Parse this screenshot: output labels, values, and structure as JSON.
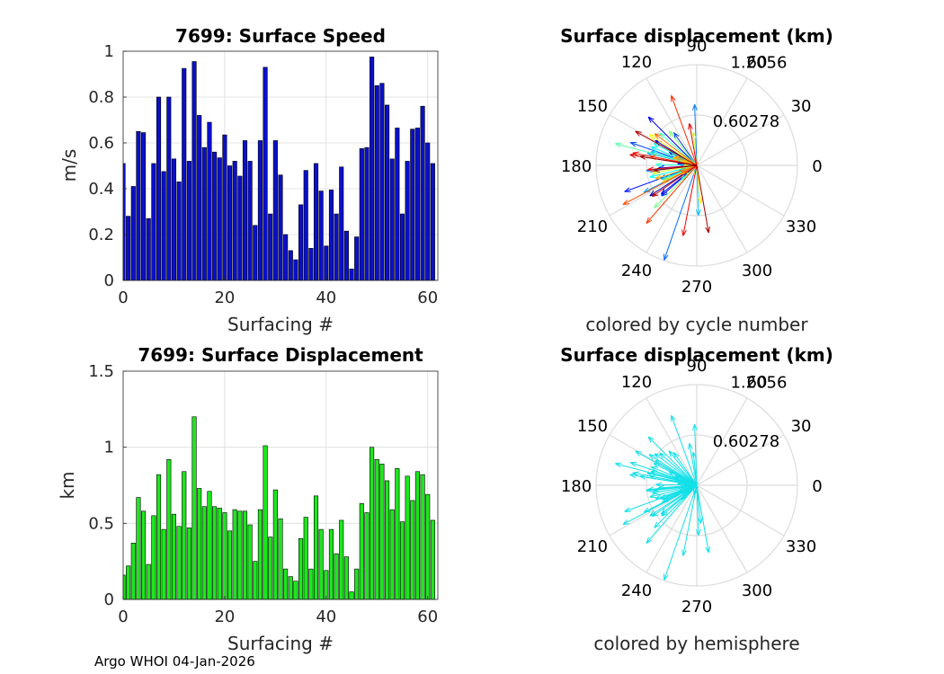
{
  "chart_data": [
    {
      "type": "bar",
      "title": "7699: Surface Speed",
      "xlabel": "Surfacing #",
      "ylabel": "m/s",
      "xlim": [
        0,
        62
      ],
      "ylim": [
        0,
        1
      ],
      "xticks": [
        "0",
        "20",
        "40",
        "60"
      ],
      "yticks": [
        "0",
        "0.2",
        "0.4",
        "0.6",
        "0.8",
        "1"
      ],
      "color": "#0a10c8",
      "values": [
        0.51,
        0.28,
        0.41,
        0.65,
        0.645,
        0.27,
        0.51,
        0.8,
        0.475,
        0.8,
        0.53,
        0.43,
        0.925,
        0.52,
        0.955,
        0.72,
        0.58,
        0.69,
        0.56,
        0.535,
        0.635,
        0.5,
        0.52,
        0.455,
        0.61,
        0.52,
        0.24,
        0.61,
        0.93,
        0.29,
        0.61,
        0.46,
        0.2,
        0.13,
        0.09,
        0.33,
        0.48,
        0.14,
        0.51,
        0.39,
        0.15,
        0.395,
        0.29,
        0.495,
        0.215,
        0.05,
        0.19,
        0.575,
        0.58,
        0.975,
        0.85,
        0.86,
        0.765,
        0.53,
        0.665,
        0.29,
        0.52,
        0.66,
        0.665,
        0.76,
        0.6,
        0.51
      ]
    },
    {
      "type": "polar",
      "title": "Surface displacement (km)",
      "caption": "colored by cycle number",
      "rlim": [
        0,
        1.2056
      ],
      "rticks": [
        "0.60278",
        "1.2056"
      ],
      "angle_labels": [
        "0",
        "30",
        "60",
        "90",
        "120",
        "150",
        "180",
        "210",
        "240",
        "270",
        "300",
        "330"
      ]
    },
    {
      "type": "bar",
      "title": "7699: Surface Displacement",
      "xlabel": "Surfacing #",
      "ylabel": "km",
      "xlim": [
        0,
        62
      ],
      "ylim": [
        0,
        1.5
      ],
      "xticks": [
        "0",
        "20",
        "40",
        "60"
      ],
      "yticks": [
        "0",
        "0.5",
        "1",
        "1.5"
      ],
      "color": "#1ee61e",
      "values": [
        0.16,
        0.22,
        0.37,
        0.67,
        0.58,
        0.23,
        0.55,
        0.82,
        0.46,
        0.92,
        0.56,
        0.48,
        0.84,
        0.47,
        1.2,
        0.73,
        0.61,
        0.71,
        0.61,
        0.6,
        0.57,
        0.45,
        0.59,
        0.58,
        0.58,
        0.49,
        0.25,
        0.59,
        1.01,
        0.41,
        0.72,
        0.53,
        0.2,
        0.15,
        0.12,
        0.4,
        0.54,
        0.2,
        0.68,
        0.46,
        0.19,
        0.46,
        0.3,
        0.52,
        0.28,
        0.05,
        0.2,
        0.63,
        0.57,
        1.0,
        0.92,
        0.89,
        0.78,
        0.59,
        0.86,
        0.51,
        0.81,
        0.65,
        0.84,
        0.82,
        0.69,
        0.52
      ]
    },
    {
      "type": "polar",
      "title": "Surface displacement (km)",
      "caption": "colored by hemisphere",
      "rlim": [
        0,
        1.2056
      ],
      "rticks": [
        "0.60278",
        "1.2056"
      ],
      "angle_labels": [
        "0",
        "30",
        "60",
        "90",
        "120",
        "150",
        "180",
        "210",
        "240",
        "270",
        "300",
        "330"
      ]
    }
  ],
  "footer": "Argo WHOI 04-Jan-2026",
  "colors": {
    "speed_bar": "#0a10c8",
    "displacement_bar": "#1ee61e",
    "hemisphere_arrow": "#12e0e8",
    "grid": "#dcdcdc"
  }
}
